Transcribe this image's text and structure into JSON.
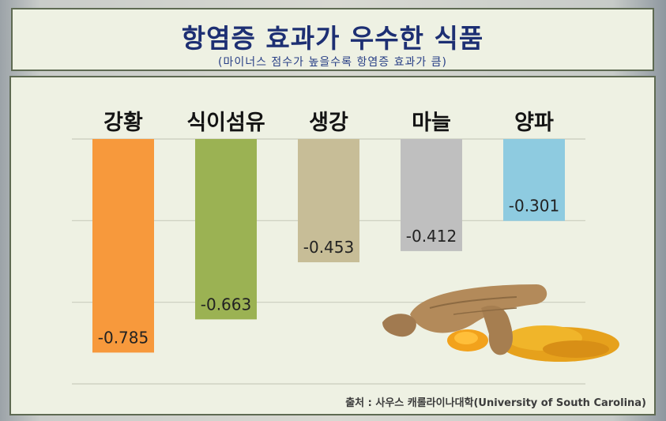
{
  "header": {
    "title": "항염증 효과가 우수한 식품",
    "subtitle": "(마이너스 점수가 높을수록 항염증 효과가 큼)"
  },
  "source": "출처 : 사우스 캐롤라이나대학(University of South Carolina)",
  "colors": {
    "강황": "#f7993c",
    "식이섬유": "#9bb253",
    "생강": "#c7bd97",
    "마늘": "#bfbfbf",
    "양파": "#8ecbe0"
  },
  "chart_data": {
    "type": "bar",
    "categories": [
      "강황",
      "식이섬유",
      "생강",
      "마늘",
      "양파"
    ],
    "values": [
      -0.785,
      -0.663,
      -0.453,
      -0.412,
      -0.301
    ],
    "value_labels": [
      "-0.785",
      "-0.663",
      "-0.453",
      "-0.412",
      "-0.301"
    ],
    "ylim": [
      -0.9,
      0
    ],
    "grid": true,
    "legend": "none"
  }
}
